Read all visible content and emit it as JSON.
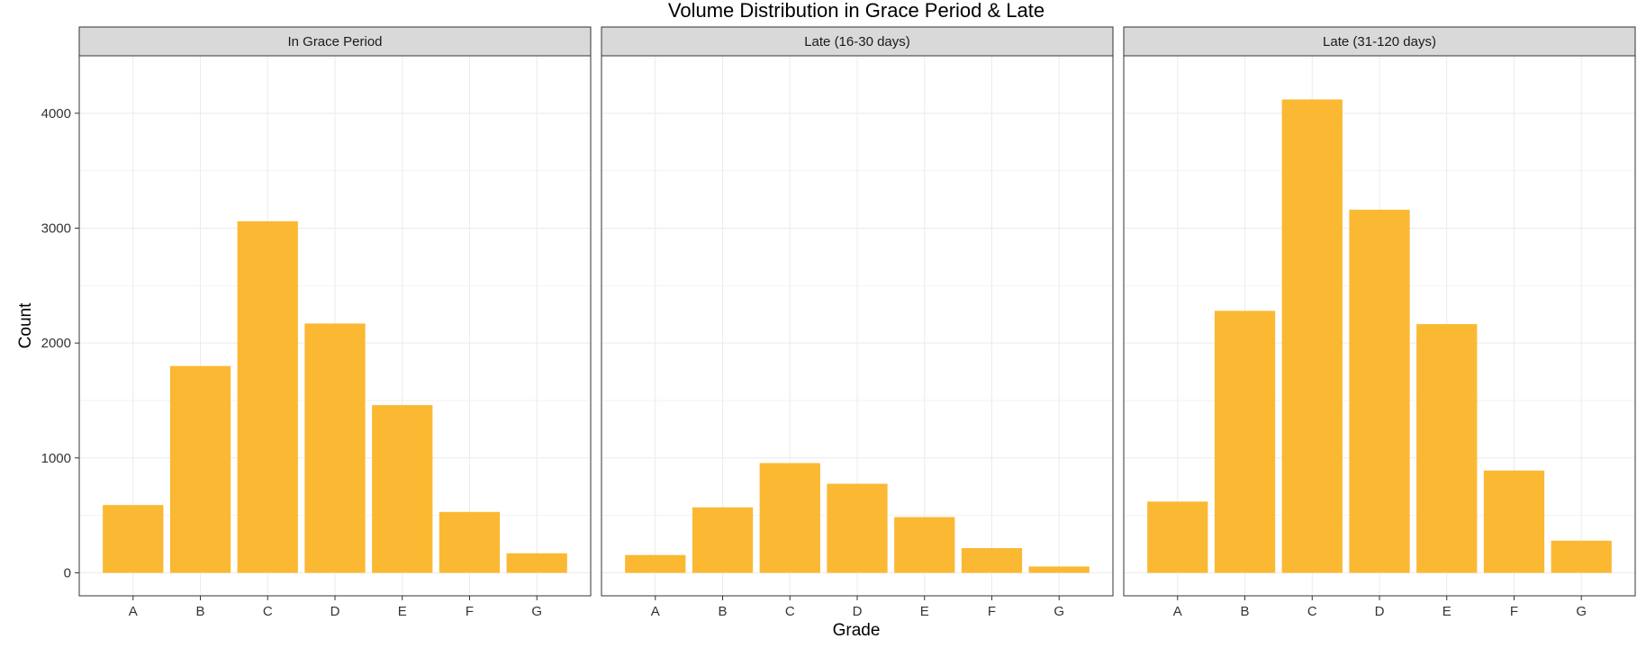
{
  "chart_data": {
    "type": "bar",
    "title": "Volume Distribution in Grace Period & Late",
    "xlabel": "Grade",
    "ylabel": "Count",
    "ylim": [
      -200,
      4500
    ],
    "yticks": [
      0,
      1000,
      2000,
      3000,
      4000
    ],
    "categories": [
      "A",
      "B",
      "C",
      "D",
      "E",
      "F",
      "G"
    ],
    "bar_color": "#FBB833",
    "grid": true,
    "panels": [
      {
        "name": "In Grace Period",
        "values": [
          590,
          1800,
          3060,
          2170,
          1460,
          530,
          170
        ]
      },
      {
        "name": "Late (16-30 days)",
        "values": [
          155,
          570,
          955,
          775,
          485,
          215,
          55
        ]
      },
      {
        "name": "Late (31-120 days)",
        "values": [
          620,
          2280,
          4120,
          3160,
          2165,
          890,
          280
        ]
      }
    ]
  },
  "tick_labels": {
    "y": [
      "0",
      "1000",
      "2000",
      "3000",
      "4000"
    ]
  }
}
